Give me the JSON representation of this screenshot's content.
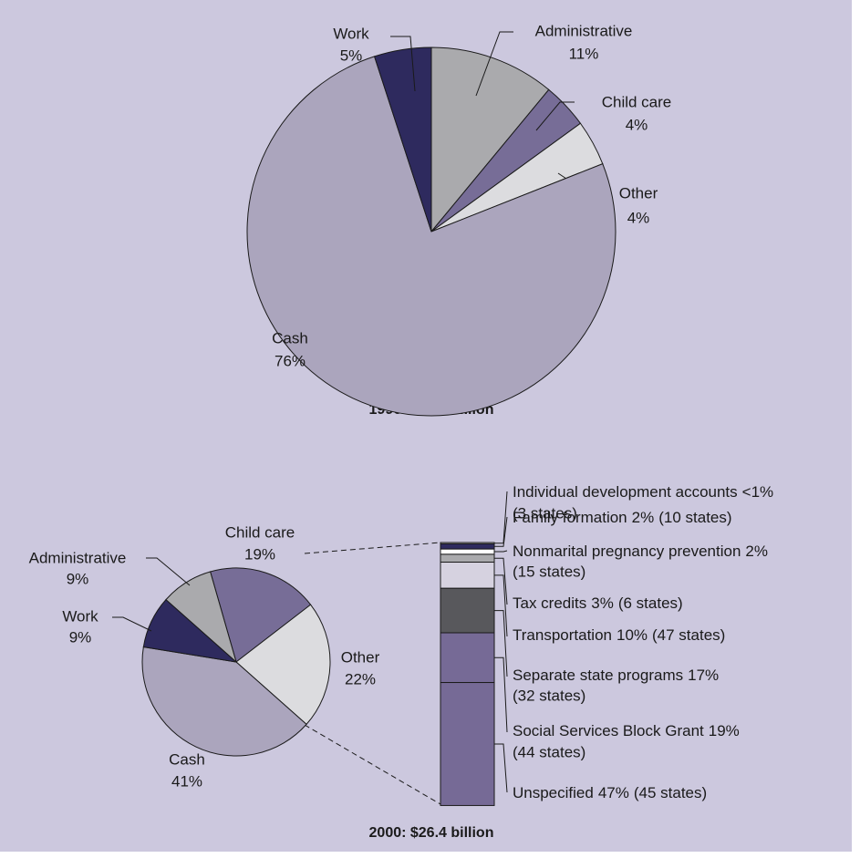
{
  "chart_data": [
    {
      "type": "pie",
      "title": "1996: $32.4 billion",
      "categories": [
        "Administrative",
        "Child care",
        "Other",
        "Cash",
        "Work"
      ],
      "values": [
        11,
        4,
        4,
        76,
        5
      ],
      "value_labels": [
        "11%",
        "4%",
        "4%",
        "76%",
        "5%"
      ],
      "colors": [
        "#aaaaad",
        "#776d97",
        "#dcdcdf",
        "#aba5bd",
        "#2e2a5e"
      ]
    },
    {
      "type": "pie",
      "title": "2000: $26.4 billion",
      "categories": [
        "Child care",
        "Other",
        "Cash",
        "Work",
        "Administrative"
      ],
      "values": [
        19,
        22,
        41,
        9,
        9
      ],
      "value_labels": [
        "19%",
        "22%",
        "41%",
        "9%",
        "9%"
      ],
      "colors": [
        "#776d97",
        "#dcdcdf",
        "#aba5bd",
        "#2e2a5e",
        "#aaaaad"
      ]
    },
    {
      "type": "bar",
      "categories": [
        "Individual development accounts",
        "Family formation",
        "Nonmarital pregnancy prevention",
        "Tax credits",
        "Transportation",
        "Separate state programs",
        "Social Services Block Grant",
        "Unspecified"
      ],
      "values": [
        0.5,
        2,
        2,
        3,
        10,
        17,
        19,
        47
      ],
      "value_labels": [
        "<1%",
        "2%",
        "2%",
        "3%",
        "10%",
        "17%",
        "19%",
        "47%"
      ],
      "notes": [
        "(3 states)",
        "(10 states)",
        "(15 states)",
        "(6 states)",
        "(47 states)",
        "(32 states)",
        "(44 states)",
        "(45 states)"
      ],
      "colors": [
        "#dcdcdf",
        "#2e2a5e",
        "#ffffff",
        "#aaaaad",
        "#d6d2e0",
        "#58585c",
        "#766a96",
        "#766a96"
      ]
    }
  ]
}
